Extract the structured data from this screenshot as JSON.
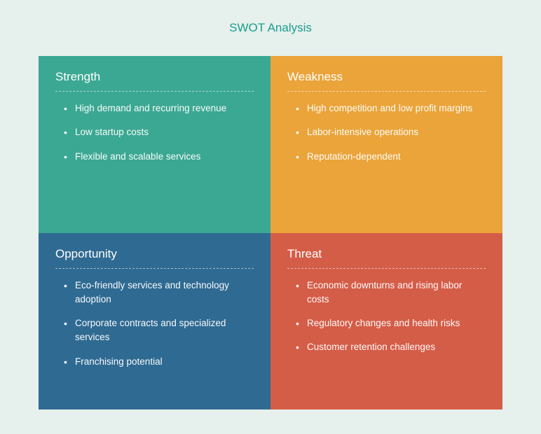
{
  "title": "SWOT Analysis",
  "layout": {
    "type": "infographic",
    "grid": "2x2",
    "background_color": "#e6f0ec",
    "title_color": "#1a9e8f",
    "title_fontsize": 17,
    "heading_fontsize": 17,
    "item_fontsize": 13.5,
    "text_color": "#ffffff",
    "divider_style": "dashed",
    "divider_color": "rgba(255,255,255,0.55)"
  },
  "quadrants": [
    {
      "key": "strength",
      "heading": "Strength",
      "background_color": "#3ba893",
      "items": [
        "High demand and recurring revenue",
        "Low startup costs",
        "Flexible and scalable services"
      ]
    },
    {
      "key": "weakness",
      "heading": "Weakness",
      "background_color": "#eaa43a",
      "items": [
        "High competition and low profit margins",
        "Labor-intensive operations",
        "Reputation-dependent"
      ]
    },
    {
      "key": "opportunity",
      "heading": "Opportunity",
      "background_color": "#2f6a92",
      "items": [
        "Eco-friendly services and technology adoption",
        "Corporate contracts and specialized services",
        "Franchising potential"
      ]
    },
    {
      "key": "threat",
      "heading": "Threat",
      "background_color": "#d45d48",
      "items": [
        "Economic downturns and rising labor costs",
        "Regulatory changes and health risks",
        "Customer retention challenges"
      ]
    }
  ]
}
